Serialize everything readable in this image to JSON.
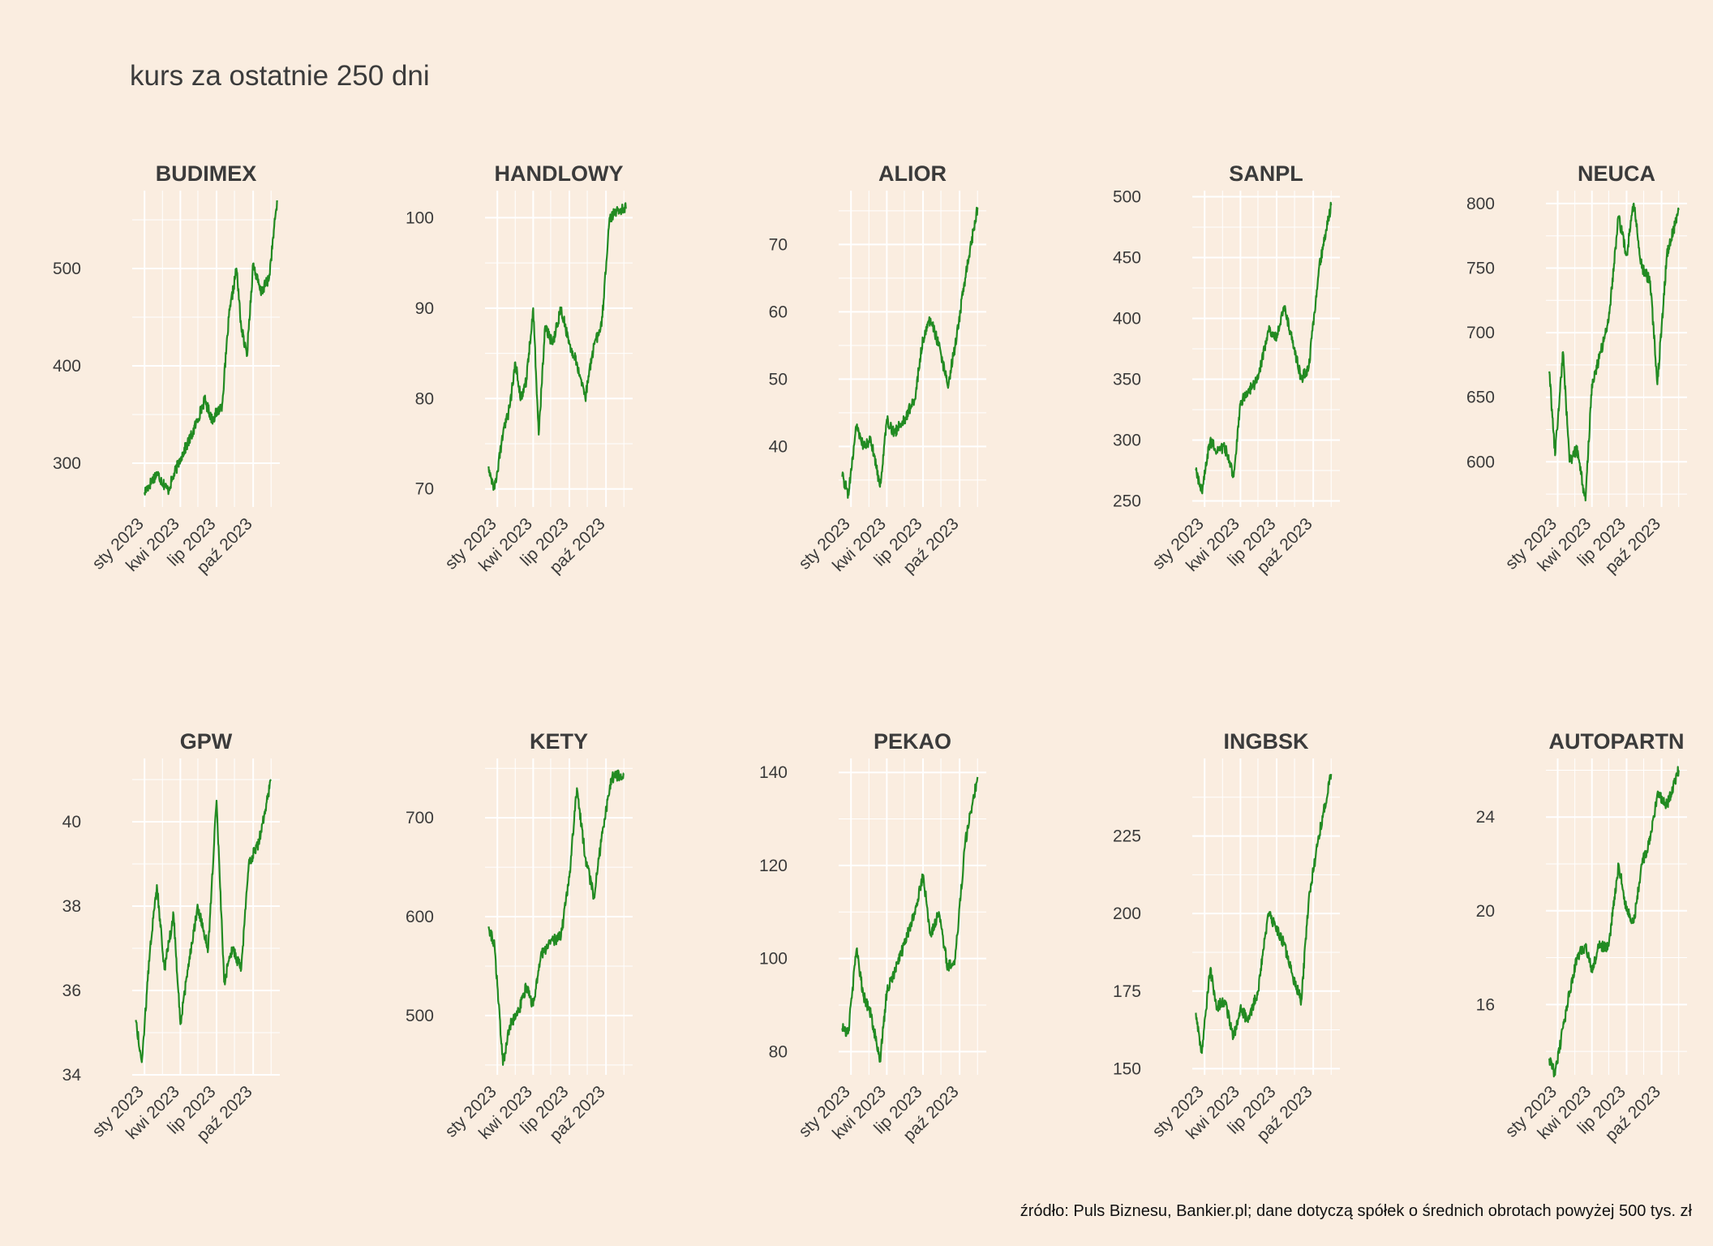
{
  "title": "kurs za ostatnie 250 dni",
  "caption": "źródło: Puls Biznesu, Bankier.pl; dane dotyczą spółek o średnich obrotach powyżej 500 tys. zł",
  "colors": {
    "background": "#faede0",
    "grid": "#ffffff",
    "line": "#228b22",
    "text": "#3b3b3b"
  },
  "chart_data": [
    {
      "type": "line",
      "title": "BUDIMEX",
      "x_tick_labels": [
        "sty 2023",
        "kwi 2023",
        "lip 2023",
        "paź 2023"
      ],
      "x": [
        "2023-01-01",
        "2023-02-01",
        "2023-03-01",
        "2023-04-01",
        "2023-05-01",
        "2023-06-01",
        "2023-06-20",
        "2023-07-15",
        "2023-08-01",
        "2023-08-20",
        "2023-09-01",
        "2023-09-15",
        "2023-10-01",
        "2023-10-20",
        "2023-11-10",
        "2023-11-30"
      ],
      "y": [
        270,
        290,
        272,
        305,
        330,
        365,
        345,
        360,
        450,
        500,
        440,
        410,
        505,
        475,
        490,
        570
      ],
      "y_ticks": [
        300,
        400,
        500
      ],
      "ylim": [
        255,
        580
      ],
      "grid": true
    },
    {
      "type": "line",
      "title": "HANDLOWY",
      "x_tick_labels": [
        "sty 2023",
        "kwi 2023",
        "lip 2023",
        "paź 2023"
      ],
      "x": [
        "2022-12-10",
        "2022-12-25",
        "2023-01-15",
        "2023-02-01",
        "2023-02-15",
        "2023-03-01",
        "2023-03-15",
        "2023-04-01",
        "2023-04-15",
        "2023-05-01",
        "2023-05-20",
        "2023-06-10",
        "2023-07-01",
        "2023-07-20",
        "2023-08-10",
        "2023-09-01",
        "2023-09-20",
        "2023-10-10",
        "2023-11-01",
        "2023-11-20"
      ],
      "y": [
        72.5,
        70,
        76,
        79,
        84,
        80,
        82,
        90,
        76,
        88,
        86,
        90,
        86,
        84,
        80,
        86,
        88,
        100,
        101,
        101
      ],
      "y_ticks": [
        70,
        80,
        90,
        100
      ],
      "ylim": [
        68,
        103
      ],
      "grid": true
    },
    {
      "type": "line",
      "title": "ALIOR",
      "x_tick_labels": [
        "sty 2023",
        "kwi 2023",
        "lip 2023",
        "paź 2023"
      ],
      "x": [
        "2022-12-10",
        "2022-12-25",
        "2023-01-15",
        "2023-02-01",
        "2023-02-20",
        "2023-03-15",
        "2023-04-01",
        "2023-04-20",
        "2023-05-15",
        "2023-06-10",
        "2023-07-01",
        "2023-07-20",
        "2023-08-10",
        "2023-09-01",
        "2023-09-20",
        "2023-10-15",
        "2023-11-15"
      ],
      "y": [
        35.5,
        33,
        43,
        40,
        41,
        34,
        44,
        42,
        44,
        47,
        56,
        59,
        55,
        49,
        55,
        65,
        75.5
      ],
      "y_ticks": [
        40,
        50,
        60,
        70
      ],
      "ylim": [
        31,
        78
      ],
      "grid": true
    },
    {
      "type": "line",
      "title": "SANPL",
      "x_tick_labels": [
        "sty 2023",
        "kwi 2023",
        "lip 2023",
        "paź 2023"
      ],
      "x": [
        "2022-12-10",
        "2022-12-25",
        "2023-01-15",
        "2023-02-01",
        "2023-02-20",
        "2023-03-15",
        "2023-04-01",
        "2023-04-20",
        "2023-05-15",
        "2023-06-10",
        "2023-07-01",
        "2023-07-20",
        "2023-08-10",
        "2023-09-01",
        "2023-09-20",
        "2023-10-15",
        "2023-11-15"
      ],
      "y": [
        275,
        257,
        300,
        290,
        295,
        270,
        330,
        340,
        350,
        390,
        385,
        410,
        380,
        350,
        360,
        440,
        493
      ],
      "y_ticks": [
        250,
        300,
        350,
        400,
        450,
        500
      ],
      "ylim": [
        245,
        505
      ],
      "grid": true
    },
    {
      "type": "line",
      "title": "NEUCA",
      "x_tick_labels": [
        "sty 2023",
        "kwi 2023",
        "lip 2023",
        "paź 2023"
      ],
      "x": [
        "2022-12-10",
        "2022-12-25",
        "2023-01-15",
        "2023-02-01",
        "2023-02-20",
        "2023-03-15",
        "2023-04-01",
        "2023-04-20",
        "2023-05-15",
        "2023-06-10",
        "2023-07-01",
        "2023-07-20",
        "2023-08-10",
        "2023-09-01",
        "2023-09-20",
        "2023-10-15",
        "2023-11-15"
      ],
      "y": [
        670,
        605,
        685,
        600,
        610,
        570,
        660,
        680,
        710,
        790,
        760,
        800,
        750,
        740,
        660,
        760,
        795
      ],
      "y_ticks": [
        600,
        650,
        700,
        750,
        800
      ],
      "ylim": [
        565,
        810
      ],
      "grid": true
    },
    {
      "type": "line",
      "title": "GPW",
      "x_tick_labels": [
        "sty 2023",
        "kwi 2023",
        "lip 2023",
        "paź 2023"
      ],
      "x": [
        "2022-12-10",
        "2022-12-25",
        "2023-01-15",
        "2023-02-01",
        "2023-02-20",
        "2023-03-15",
        "2023-04-01",
        "2023-04-20",
        "2023-05-15",
        "2023-06-10",
        "2023-07-01",
        "2023-07-20",
        "2023-08-10",
        "2023-09-01",
        "2023-09-20",
        "2023-10-15",
        "2023-11-15"
      ],
      "y": [
        35.3,
        34.3,
        37.0,
        38.5,
        36.5,
        37.8,
        35.2,
        36.5,
        38.0,
        37.0,
        40.5,
        36.2,
        37.0,
        36.5,
        39.0,
        39.5,
        41.0
      ],
      "y_ticks": [
        34,
        36,
        38,
        40
      ],
      "ylim": [
        34,
        41.5
      ],
      "grid": true
    },
    {
      "type": "line",
      "title": "KETY",
      "x_tick_labels": [
        "sty 2023",
        "kwi 2023",
        "lip 2023",
        "paź 2023"
      ],
      "x": [
        "2022-12-10",
        "2022-12-25",
        "2023-01-15",
        "2023-02-01",
        "2023-02-20",
        "2023-03-15",
        "2023-04-01",
        "2023-04-20",
        "2023-05-15",
        "2023-06-10",
        "2023-07-01",
        "2023-07-20",
        "2023-08-10",
        "2023-09-01",
        "2023-09-20",
        "2023-10-15",
        "2023-11-15"
      ],
      "y": [
        590,
        570,
        450,
        490,
        500,
        530,
        510,
        560,
        575,
        580,
        640,
        730,
        660,
        620,
        680,
        740,
        745
      ],
      "y_ticks": [
        500,
        600,
        700
      ],
      "ylim": [
        440,
        760
      ],
      "grid": true
    },
    {
      "type": "line",
      "title": "PEKAO",
      "x_tick_labels": [
        "sty 2023",
        "kwi 2023",
        "lip 2023",
        "paź 2023"
      ],
      "x": [
        "2022-12-10",
        "2022-12-25",
        "2023-01-15",
        "2023-02-01",
        "2023-02-20",
        "2023-03-15",
        "2023-04-01",
        "2023-04-20",
        "2023-05-15",
        "2023-06-10",
        "2023-07-01",
        "2023-07-20",
        "2023-08-10",
        "2023-09-01",
        "2023-09-20",
        "2023-10-15",
        "2023-11-15"
      ],
      "y": [
        85,
        84,
        102,
        92,
        88,
        78,
        93,
        97,
        103,
        110,
        118,
        105,
        110,
        98,
        100,
        125,
        139
      ],
      "y_ticks": [
        80,
        100,
        120,
        140
      ],
      "ylim": [
        75,
        143
      ],
      "grid": true
    },
    {
      "type": "line",
      "title": "INGBSK",
      "x_tick_labels": [
        "sty 2023",
        "kwi 2023",
        "lip 2023",
        "paź 2023"
      ],
      "x": [
        "2022-12-10",
        "2022-12-25",
        "2023-01-15",
        "2023-02-01",
        "2023-02-20",
        "2023-03-15",
        "2023-04-01",
        "2023-04-20",
        "2023-05-15",
        "2023-06-10",
        "2023-07-01",
        "2023-07-20",
        "2023-08-10",
        "2023-09-01",
        "2023-09-20",
        "2023-10-15",
        "2023-11-15"
      ],
      "y": [
        168,
        155,
        182,
        170,
        172,
        160,
        170,
        165,
        175,
        200,
        195,
        190,
        180,
        172,
        205,
        225,
        245
      ],
      "y_ticks": [
        150,
        175,
        200,
        225
      ],
      "ylim": [
        148,
        250
      ],
      "grid": true
    },
    {
      "type": "line",
      "title": "AUTOPARTN",
      "x_tick_labels": [
        "sty 2023",
        "kwi 2023",
        "lip 2023",
        "paź 2023"
      ],
      "x": [
        "2022-12-10",
        "2022-12-25",
        "2023-01-15",
        "2023-02-01",
        "2023-02-20",
        "2023-03-15",
        "2023-04-01",
        "2023-04-20",
        "2023-05-15",
        "2023-06-10",
        "2023-07-01",
        "2023-07-20",
        "2023-08-10",
        "2023-09-01",
        "2023-09-20",
        "2023-10-15",
        "2023-11-15"
      ],
      "y": [
        13.7,
        13.0,
        15.0,
        16.5,
        18.0,
        18.5,
        17.5,
        18.5,
        18.5,
        22.0,
        20.0,
        19.5,
        22.0,
        23.0,
        25.0,
        24.5,
        26.0
      ],
      "y_ticks": [
        16,
        20,
        24
      ],
      "ylim": [
        13,
        26.5
      ],
      "grid": true
    }
  ]
}
